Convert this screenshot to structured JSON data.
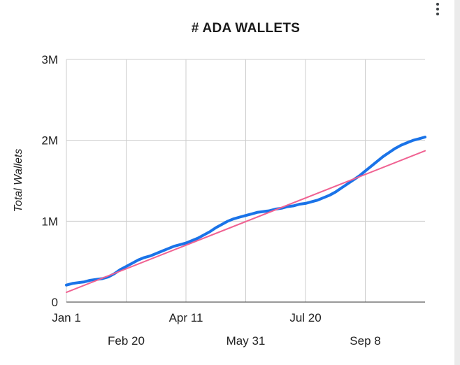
{
  "header": {
    "menu_icon": "kebab-vertical-dots"
  },
  "chart_data": {
    "type": "line",
    "title": "# ADA WALLETS",
    "ylabel": "Total Wallets",
    "xlabel": "",
    "y_unit": "wallets (millions)",
    "x_unit": "days since Jan 1",
    "ylim": [
      0,
      3
    ],
    "x_range": [
      0,
      300
    ],
    "grid": true,
    "legend": "none",
    "y_ticks": [
      {
        "value": 0,
        "label": "0"
      },
      {
        "value": 1,
        "label": "1M"
      },
      {
        "value": 2,
        "label": "2M"
      },
      {
        "value": 3,
        "label": "3M"
      }
    ],
    "x_ticks": [
      {
        "x": 0,
        "label": "Jan 1"
      },
      {
        "x": 50,
        "label": "Feb 20"
      },
      {
        "x": 100,
        "label": "Apr 11"
      },
      {
        "x": 150,
        "label": "May 31"
      },
      {
        "x": 200,
        "label": "Jul 20"
      },
      {
        "x": 250,
        "label": "Sep 8"
      }
    ],
    "colors": {
      "grid": "#cccccc",
      "baseline": "#333333",
      "tick_text": "#212121",
      "title_text": "#1a1a1a"
    },
    "series": [
      {
        "name": "Total Wallets",
        "color": "#1a73e8",
        "stroke_width": 4,
        "x": [
          0,
          5,
          10,
          15,
          20,
          25,
          30,
          35,
          40,
          45,
          50,
          55,
          60,
          65,
          70,
          75,
          80,
          85,
          90,
          95,
          100,
          105,
          110,
          115,
          120,
          125,
          130,
          135,
          140,
          145,
          150,
          155,
          160,
          165,
          170,
          175,
          180,
          185,
          190,
          195,
          200,
          205,
          210,
          215,
          220,
          225,
          230,
          235,
          240,
          245,
          250,
          255,
          260,
          265,
          270,
          275,
          280,
          285,
          290,
          295,
          300
        ],
        "values": [
          0.21,
          0.23,
          0.24,
          0.25,
          0.27,
          0.28,
          0.29,
          0.31,
          0.35,
          0.4,
          0.44,
          0.48,
          0.52,
          0.55,
          0.57,
          0.6,
          0.63,
          0.66,
          0.69,
          0.71,
          0.73,
          0.76,
          0.79,
          0.83,
          0.87,
          0.92,
          0.96,
          1.0,
          1.03,
          1.05,
          1.07,
          1.09,
          1.11,
          1.12,
          1.13,
          1.15,
          1.16,
          1.18,
          1.19,
          1.21,
          1.22,
          1.24,
          1.26,
          1.29,
          1.32,
          1.36,
          1.41,
          1.46,
          1.51,
          1.56,
          1.62,
          1.68,
          1.74,
          1.8,
          1.85,
          1.9,
          1.94,
          1.97,
          2.0,
          2.02,
          2.04
        ]
      },
      {
        "name": "Trendline",
        "color": "#f06292",
        "stroke_width": 2,
        "x": [
          0,
          300
        ],
        "values": [
          0.12,
          1.87
        ]
      }
    ]
  }
}
